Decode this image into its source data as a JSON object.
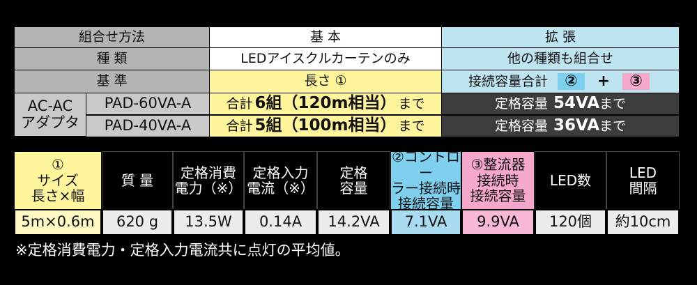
{
  "table1": {
    "method_header": "組合せ方法",
    "basic_header": "基 本",
    "ext_header": "拡 張",
    "type_label": "種 類",
    "type_basic": "LEDアイスクルカーテンのみ",
    "type_ext": "他の種類も組合せ",
    "std_label": "基 準",
    "std_basic": "長さ ①",
    "std_ext": [
      "接続容量合計",
      "②",
      "+",
      "③"
    ],
    "adapter_label": [
      "AC-AC",
      "アダプタ"
    ],
    "models": [
      {
        "model": "PAD-60VA-A",
        "basic": [
          "合計",
          "6組（120m相当）",
          "まで"
        ],
        "ext": [
          "定格容量",
          "54VA",
          "まで"
        ]
      },
      {
        "model": "PAD-40VA-A",
        "basic": [
          "合計",
          "5組（100m相当）",
          "まで"
        ],
        "ext": [
          "定格容量",
          "36VA",
          "まで"
        ]
      }
    ]
  },
  "table2": {
    "headers": [
      [
        "①",
        "サイズ",
        "長さ×幅"
      ],
      [
        "質 量"
      ],
      [
        "定格消費",
        "電力（※）"
      ],
      [
        "定格入力",
        "電流（※）"
      ],
      [
        "定格",
        "容量"
      ],
      [
        "②コントロー",
        "ラー接続時",
        "接続容量"
      ],
      [
        "③整流器",
        "接続時",
        "接続容量"
      ],
      [
        "LED数"
      ],
      [
        "LED",
        "間隔"
      ]
    ],
    "values": [
      "5m×0.6m",
      "620 g",
      "13.5W",
      "0.14A",
      "14.2VA",
      "7.1VA",
      "9.9VA",
      "120個",
      "約10cm"
    ]
  },
  "footnote": "※定格消費電力・定格入力電流共に点灯の平均値。"
}
